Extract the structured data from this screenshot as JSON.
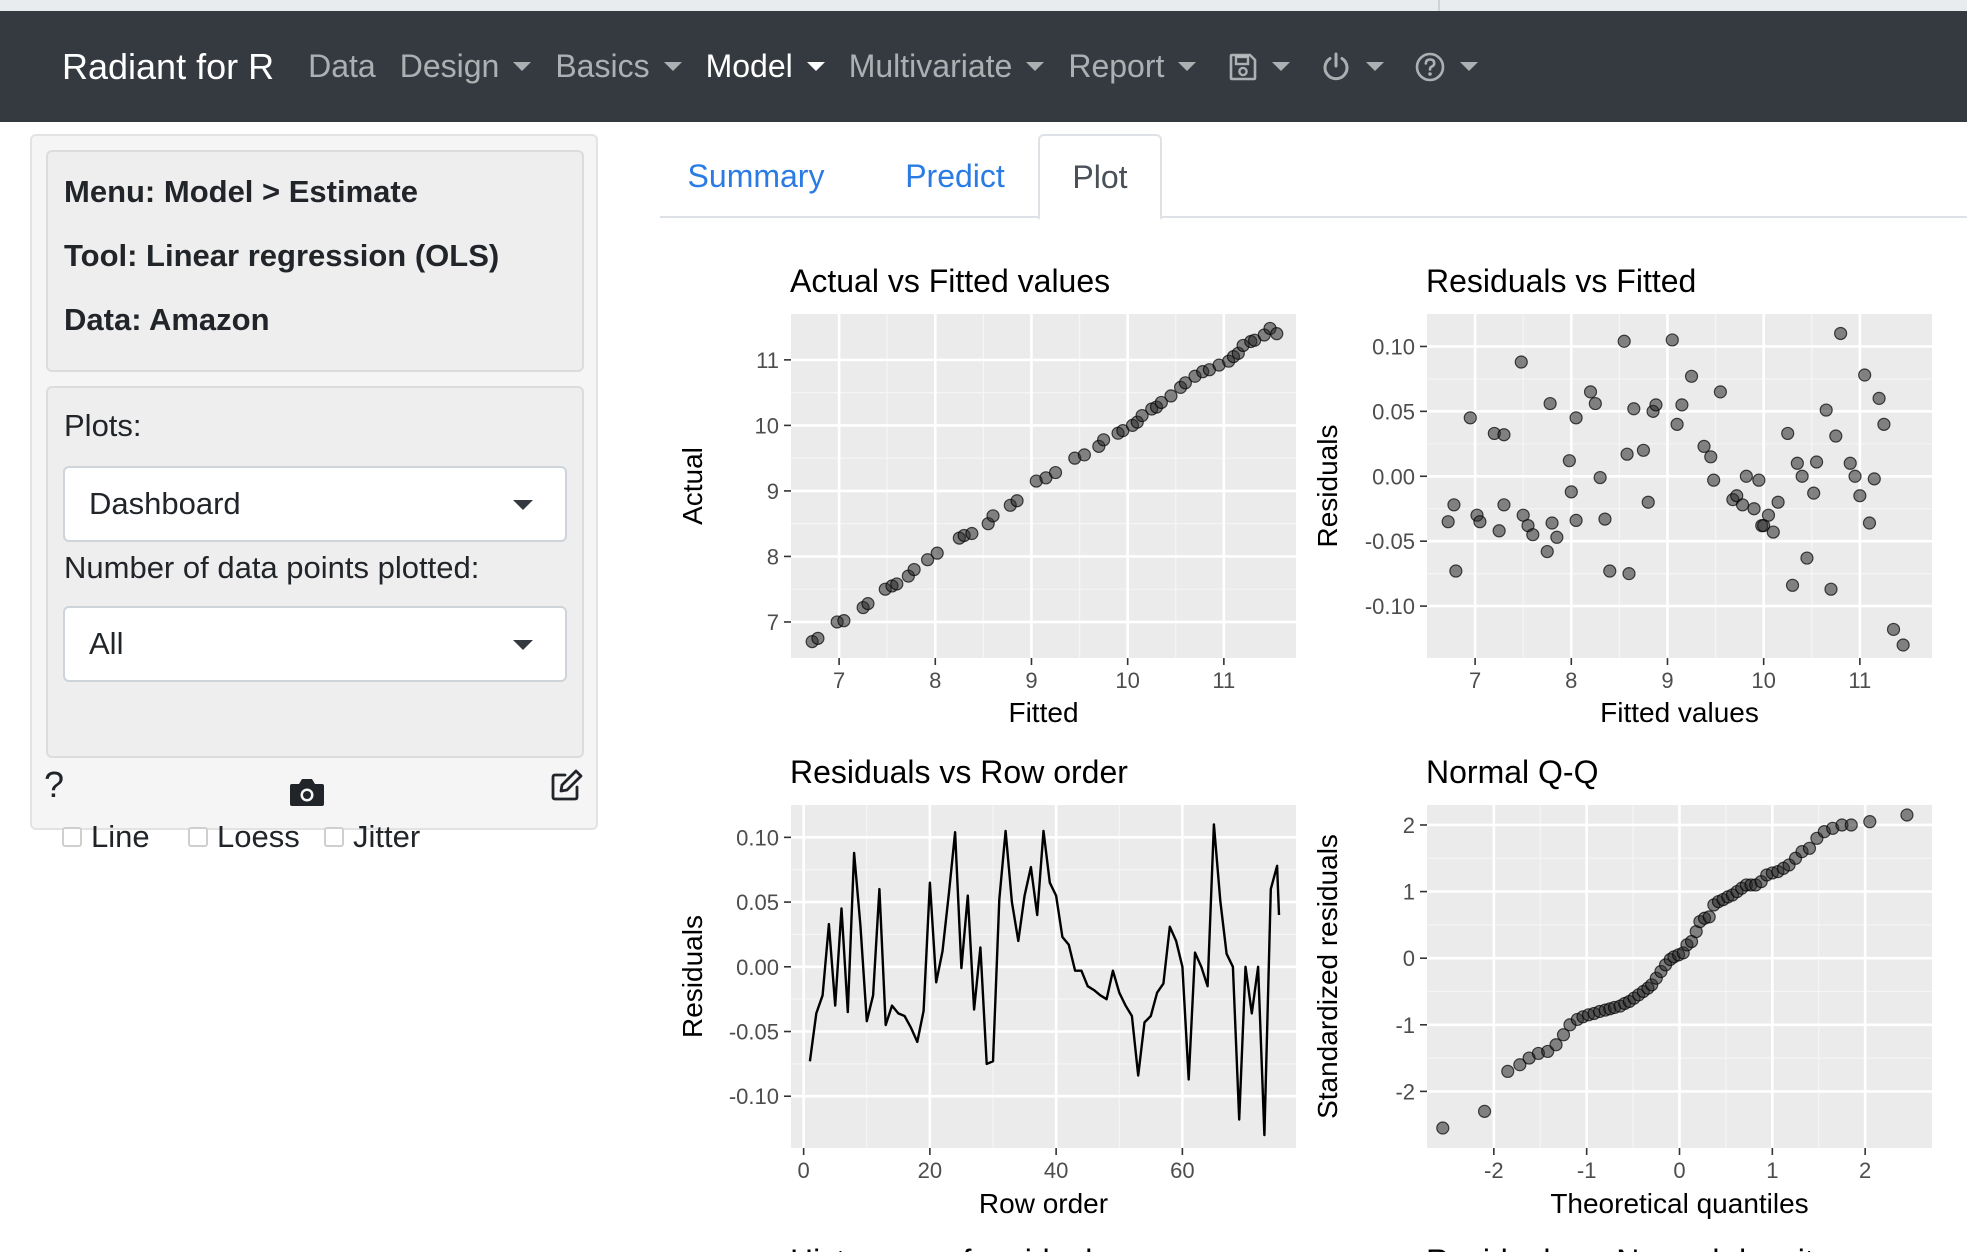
{
  "navbar": {
    "brand": "Radiant for R",
    "items": [
      {
        "label": "Data",
        "caret": false,
        "active": false
      },
      {
        "label": "Design",
        "caret": true,
        "active": false
      },
      {
        "label": "Basics",
        "caret": true,
        "active": false
      },
      {
        "label": "Model",
        "caret": true,
        "active": true
      },
      {
        "label": "Multivariate",
        "caret": true,
        "active": false
      },
      {
        "label": "Report",
        "caret": true,
        "active": false
      }
    ],
    "icons": [
      "save-icon",
      "power-icon",
      "help-circle-icon"
    ]
  },
  "sidebar": {
    "menu": "Menu: Model > Estimate",
    "tool": "Tool: Linear regression (OLS)",
    "data": "Data: Amazon",
    "plots_label": "Plots:",
    "plots_value": "Dashboard",
    "points_label": "Number of data points plotted:",
    "points_value": "All",
    "checkboxes": [
      {
        "label": "Line",
        "checked": false
      },
      {
        "label": "Loess",
        "checked": false
      },
      {
        "label": "Jitter",
        "checked": false
      }
    ],
    "help_label": "?"
  },
  "tabs": [
    {
      "label": "Summary",
      "active": false
    },
    {
      "label": "Predict",
      "active": false
    },
    {
      "label": "Plot",
      "active": true
    }
  ],
  "chart_data": [
    {
      "type": "scatter",
      "title": "Actual vs Fitted values",
      "xlabel": "Fitted",
      "ylabel": "Actual",
      "xlim": [
        6.5,
        11.75
      ],
      "ylim": [
        6.45,
        11.7
      ],
      "xticks": [
        7,
        8,
        9,
        10,
        11
      ],
      "yticks": [
        7,
        8,
        9,
        10,
        11
      ],
      "grid": true,
      "x": [
        6.72,
        6.78,
        6.98,
        7.05,
        7.25,
        7.3,
        7.48,
        7.55,
        7.6,
        7.72,
        7.78,
        7.92,
        8.02,
        8.25,
        8.3,
        8.38,
        8.55,
        8.6,
        8.78,
        8.85,
        9.05,
        9.15,
        9.25,
        9.45,
        9.55,
        9.7,
        9.75,
        9.9,
        9.95,
        10.05,
        10.1,
        10.15,
        10.25,
        10.3,
        10.35,
        10.45,
        10.55,
        10.6,
        10.7,
        10.78,
        10.85,
        10.95,
        11.05,
        11.1,
        11.15,
        11.2,
        11.28,
        11.32,
        11.42,
        11.48,
        11.55
      ],
      "y": [
        6.7,
        6.75,
        7.0,
        7.02,
        7.22,
        7.28,
        7.5,
        7.55,
        7.58,
        7.7,
        7.8,
        7.95,
        8.05,
        8.28,
        8.32,
        8.35,
        8.5,
        8.62,
        8.78,
        8.85,
        9.15,
        9.2,
        9.28,
        9.5,
        9.55,
        9.68,
        9.78,
        9.88,
        9.92,
        10.0,
        10.05,
        10.15,
        10.25,
        10.28,
        10.35,
        10.45,
        10.58,
        10.65,
        10.75,
        10.82,
        10.85,
        10.92,
        10.98,
        11.05,
        11.1,
        11.22,
        11.28,
        11.3,
        11.38,
        11.48,
        11.4
      ]
    },
    {
      "type": "scatter",
      "title": "Residuals vs Fitted",
      "xlabel": "Fitted values",
      "ylabel": "Residuals",
      "xlim": [
        6.5,
        11.75
      ],
      "ylim": [
        -0.14,
        0.125
      ],
      "xticks": [
        7,
        8,
        9,
        10,
        11
      ],
      "yticks": [
        0.1,
        0.05,
        0.0,
        -0.05,
        -0.1
      ],
      "ytick_labels": [
        "0.10",
        "0.05",
        "0.00",
        "-0.05",
        "-0.10"
      ],
      "grid": true,
      "x": [
        6.72,
        6.78,
        6.8,
        6.95,
        7.02,
        7.05,
        7.2,
        7.25,
        7.3,
        7.3,
        7.48,
        7.5,
        7.55,
        7.6,
        7.75,
        7.78,
        7.8,
        7.85,
        7.98,
        8.0,
        8.05,
        8.05,
        8.2,
        8.25,
        8.3,
        8.35,
        8.4,
        8.55,
        8.58,
        8.6,
        8.65,
        8.75,
        8.8,
        8.85,
        8.88,
        9.05,
        9.1,
        9.15,
        9.25,
        9.38,
        9.45,
        9.48,
        9.55,
        9.68,
        9.72,
        9.78,
        9.82,
        9.9,
        9.95,
        9.98,
        10.0,
        10.05,
        10.1,
        10.15,
        10.25,
        10.3,
        10.35,
        10.4,
        10.45,
        10.52,
        10.55,
        10.65,
        10.7,
        10.75,
        10.8,
        10.9,
        10.95,
        11.0,
        11.05,
        11.1,
        11.15,
        11.2,
        11.25,
        11.35,
        11.45
      ],
      "y": [
        -0.035,
        -0.022,
        -0.073,
        0.045,
        -0.03,
        -0.035,
        0.033,
        -0.042,
        -0.022,
        0.032,
        0.088,
        -0.03,
        -0.038,
        -0.045,
        -0.058,
        0.056,
        -0.036,
        -0.047,
        0.012,
        -0.012,
        0.045,
        -0.034,
        0.065,
        0.056,
        -0.001,
        -0.033,
        -0.073,
        0.104,
        0.017,
        -0.075,
        0.052,
        0.02,
        -0.02,
        0.05,
        0.055,
        0.105,
        0.04,
        0.055,
        0.077,
        0.023,
        0.015,
        -0.003,
        0.065,
        -0.018,
        -0.015,
        -0.022,
        0.0,
        -0.025,
        -0.003,
        -0.038,
        -0.038,
        -0.03,
        -0.043,
        -0.02,
        0.033,
        -0.084,
        0.01,
        0.0,
        -0.063,
        -0.013,
        0.011,
        0.051,
        -0.087,
        0.031,
        0.11,
        0.01,
        0.0,
        -0.015,
        0.078,
        -0.036,
        -0.002,
        0.06,
        0.04,
        -0.118,
        -0.13
      ]
    },
    {
      "type": "line",
      "title": "Residuals vs Row order",
      "xlabel": "Row order",
      "ylabel": "Residuals",
      "xlim": [
        -2,
        78
      ],
      "ylim": [
        -0.14,
        0.125
      ],
      "xticks": [
        0,
        20,
        40,
        60
      ],
      "yticks": [
        0.1,
        0.05,
        0.0,
        -0.05,
        -0.1
      ],
      "ytick_labels": [
        "0.10",
        "0.05",
        "0.00",
        "-0.05",
        "-0.10"
      ],
      "grid": true,
      "x": [
        1,
        2,
        3,
        4,
        5,
        6,
        7,
        8,
        9,
        10,
        11,
        12,
        13,
        14,
        15,
        16,
        17,
        18,
        19,
        20,
        21,
        22,
        23,
        24,
        25,
        26,
        27,
        28,
        29,
        30,
        31,
        32,
        33,
        34,
        35,
        36,
        37,
        38,
        39,
        40,
        41,
        42,
        43,
        44,
        45,
        46,
        47,
        48,
        49,
        50,
        51,
        52,
        53,
        54,
        55,
        56,
        57,
        58,
        59,
        60,
        61,
        62,
        63,
        64,
        65,
        66,
        67,
        68,
        69,
        70,
        71,
        72,
        73,
        74,
        75
      ],
      "y": [
        -0.073,
        -0.036,
        -0.022,
        0.033,
        -0.03,
        0.045,
        -0.035,
        0.088,
        0.032,
        -0.042,
        -0.022,
        0.06,
        -0.045,
        -0.03,
        -0.036,
        -0.038,
        -0.047,
        -0.058,
        -0.034,
        0.065,
        -0.012,
        0.012,
        0.056,
        0.104,
        -0.001,
        0.055,
        -0.033,
        0.015,
        -0.075,
        -0.073,
        0.052,
        0.105,
        0.05,
        0.02,
        0.055,
        0.077,
        0.04,
        0.105,
        0.065,
        0.055,
        0.023,
        0.017,
        -0.003,
        -0.003,
        -0.015,
        -0.018,
        -0.022,
        -0.025,
        -0.003,
        -0.02,
        -0.03,
        -0.038,
        -0.084,
        -0.043,
        -0.038,
        -0.02,
        -0.013,
        0.031,
        0.02,
        0.0,
        -0.087,
        0.011,
        0.0,
        -0.015,
        0.11,
        0.051,
        0.01,
        0.0,
        -0.118,
        0.0,
        -0.036,
        0.0,
        -0.13,
        0.06,
        0.078
      ],
      "final_y": 0.04
    },
    {
      "type": "scatter",
      "title": "Normal Q-Q",
      "xlabel": "Theoretical quantiles",
      "ylabel": "Standardized residuals",
      "xlim": [
        -2.72,
        2.72
      ],
      "ylim": [
        -2.85,
        2.3
      ],
      "xticks": [
        -2,
        -1,
        0,
        1,
        2
      ],
      "yticks": [
        2,
        1,
        0,
        -1,
        -2
      ],
      "grid": true,
      "x": [
        -2.55,
        -2.1,
        -1.85,
        -1.72,
        -1.62,
        -1.52,
        -1.42,
        -1.33,
        -1.25,
        -1.18,
        -1.1,
        -1.04,
        -0.98,
        -0.92,
        -0.86,
        -0.8,
        -0.75,
        -0.7,
        -0.64,
        -0.59,
        -0.54,
        -0.49,
        -0.44,
        -0.39,
        -0.34,
        -0.3,
        -0.25,
        -0.2,
        -0.15,
        -0.1,
        -0.06,
        -0.01,
        0.04,
        0.08,
        0.13,
        0.18,
        0.22,
        0.27,
        0.32,
        0.37,
        0.42,
        0.47,
        0.52,
        0.57,
        0.62,
        0.67,
        0.72,
        0.77,
        0.82,
        0.88,
        0.94,
        1.0,
        1.06,
        1.12,
        1.18,
        1.25,
        1.32,
        1.4,
        1.48,
        1.56,
        1.65,
        1.75,
        1.85,
        2.05,
        2.45
      ],
      "y": [
        -2.55,
        -2.3,
        -1.7,
        -1.6,
        -1.5,
        -1.43,
        -1.4,
        -1.3,
        -1.15,
        -1.0,
        -0.92,
        -0.88,
        -0.85,
        -0.83,
        -0.8,
        -0.78,
        -0.76,
        -0.74,
        -0.72,
        -0.68,
        -0.65,
        -0.6,
        -0.55,
        -0.5,
        -0.45,
        -0.4,
        -0.3,
        -0.2,
        -0.1,
        -0.02,
        0.02,
        0.05,
        0.08,
        0.2,
        0.25,
        0.4,
        0.55,
        0.6,
        0.62,
        0.8,
        0.85,
        0.88,
        0.92,
        0.95,
        1.0,
        1.05,
        1.1,
        1.1,
        1.1,
        1.15,
        1.25,
        1.28,
        1.3,
        1.35,
        1.4,
        1.5,
        1.6,
        1.65,
        1.8,
        1.9,
        1.95,
        2.0,
        2.0,
        2.05,
        2.15
      ]
    }
  ],
  "next_row_titles": [
    "Histogram of residuals",
    "Residuals vs Normal density"
  ]
}
